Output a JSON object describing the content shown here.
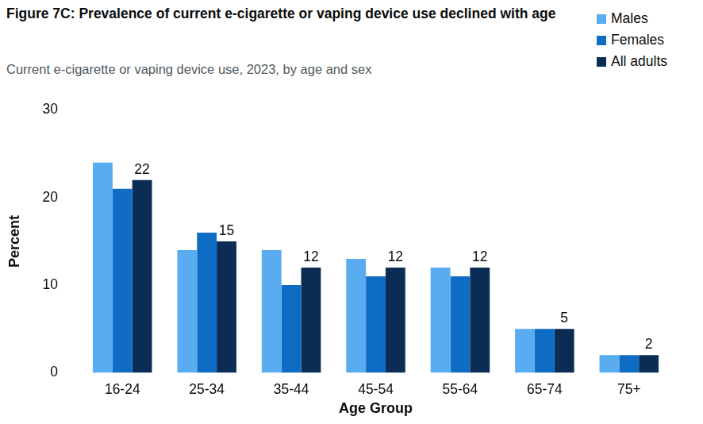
{
  "chart_data": {
    "type": "bar",
    "title": "Figure 7C: Prevalence of current e-cigarette or vaping device use declined with age",
    "subtitle": "Current e-cigarette or vaping device use, 2023, by age and sex",
    "x_label": "Age Group",
    "y_label": "Percent",
    "categories": [
      "16-24",
      "25-34",
      "35-44",
      "45-54",
      "55-64",
      "65-74",
      "75+"
    ],
    "series": [
      {
        "name": "Males",
        "color": "#5aacf0",
        "values": [
          24,
          14,
          14,
          13,
          12,
          5,
          2
        ]
      },
      {
        "name": "Females",
        "color": "#0f6cc4",
        "values": [
          21,
          16,
          10,
          11,
          11,
          5,
          2
        ]
      },
      {
        "name": "All adults",
        "color": "#0b2d55",
        "values": [
          22,
          15,
          12,
          12,
          12,
          5,
          2
        ],
        "data_labels": true
      }
    ],
    "ylim": [
      0,
      30
    ],
    "yticks": [
      0,
      10,
      20,
      30
    ],
    "grid": false,
    "legend": "upper right"
  }
}
